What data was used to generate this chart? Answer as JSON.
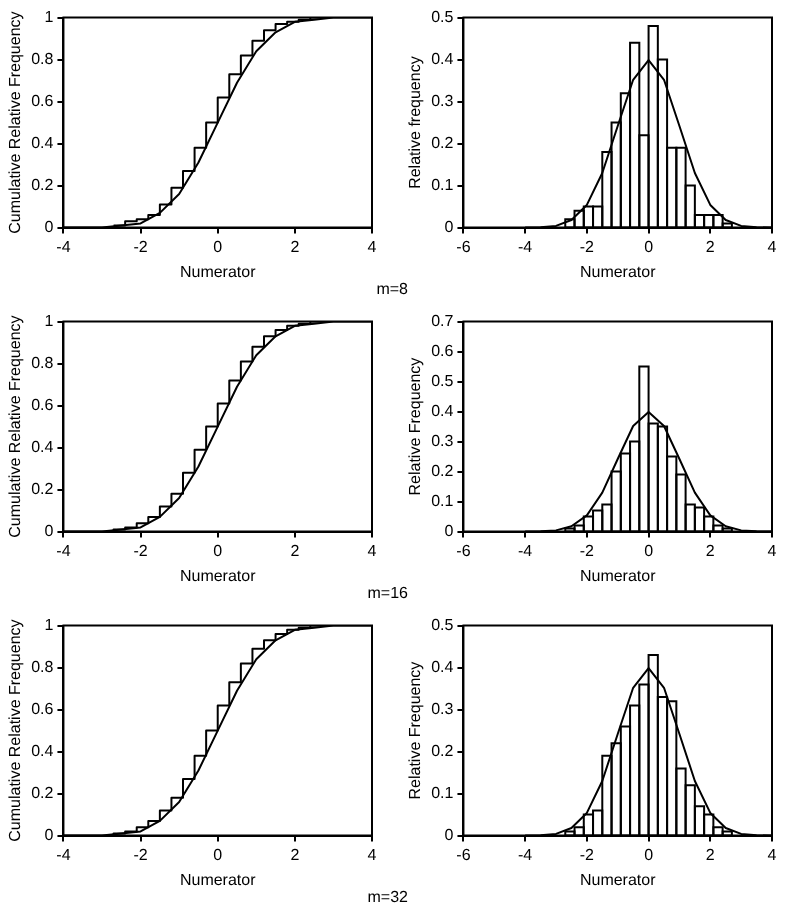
{
  "chart_data": [
    {
      "type": "step",
      "xlabel": "Numerator",
      "ylabel": "Cumulative Relative Frequency",
      "annotations": [
        "m=8"
      ],
      "xlim": [
        -4,
        4
      ],
      "xticks": [
        -4,
        -2,
        0,
        2,
        4
      ],
      "ylim": [
        0,
        1
      ],
      "yticks": [
        0,
        0.2,
        0.4,
        0.6,
        0.8,
        1
      ],
      "grid": false,
      "legend": false,
      "series": [
        {
          "color": "#000000",
          "x": [
            -2.7,
            -2.4,
            -2.1,
            -1.8,
            -1.5,
            -1.2,
            -0.9,
            -0.6,
            -0.3,
            0,
            0.3,
            0.6,
            0.9,
            1.2,
            1.5,
            1.8,
            2.1,
            2.4,
            2.7
          ],
          "values": [
            0.01,
            0.01,
            0.03,
            0.04,
            0.06,
            0.11,
            0.19,
            0.27,
            0.38,
            0.5,
            0.62,
            0.73,
            0.82,
            0.89,
            0.94,
            0.97,
            0.98,
            0.99,
            1
          ]
        },
        {
          "type": "line",
          "color": "#000000",
          "x": [
            -4,
            -3.5,
            -3,
            -2.5,
            -2,
            -1.5,
            -1,
            -0.5,
            0,
            0.5,
            1,
            1.5,
            2,
            2.5,
            3,
            3.5,
            4
          ],
          "values": [
            0,
            0,
            0,
            0.01,
            0.02,
            0.07,
            0.16,
            0.31,
            0.5,
            0.69,
            0.84,
            0.93,
            0.98,
            0.99,
            1,
            1,
            1
          ]
        }
      ]
    },
    {
      "type": "histogram",
      "xlabel": "Numerator",
      "ylabel": "Relative frequency",
      "xlim": [
        -6,
        4
      ],
      "xticks": [
        -6,
        -4,
        -2,
        0,
        2,
        4
      ],
      "ylim": [
        0,
        0.5
      ],
      "yticks": [
        0,
        0.1,
        0.2,
        0.3,
        0.4,
        0.5
      ],
      "grid": false,
      "legend": false,
      "series": [
        {
          "color": "#000000",
          "bins": [
            -2.7,
            -2.4,
            -2.1,
            -1.8,
            -1.5,
            -1.2,
            -0.9,
            -0.6,
            -0.3,
            0,
            0.3,
            0.6,
            0.9,
            1.2,
            1.5,
            1.8,
            2.1,
            2.4,
            2.7
          ],
          "values": [
            0.02,
            0.04,
            0.05,
            0.05,
            0.18,
            0.25,
            0.32,
            0.44,
            0.22,
            0.48,
            0.4,
            0.19,
            0.19,
            0.1,
            0.03,
            0.03,
            0.03,
            0.01
          ]
        },
        {
          "type": "line",
          "color": "#000000",
          "x": [
            -4,
            -3.5,
            -3,
            -2.5,
            -2,
            -1.5,
            -1,
            -0.5,
            0,
            0.5,
            1,
            1.5,
            2,
            2.5,
            3,
            3.5,
            4
          ],
          "values": [
            0,
            0.001,
            0.004,
            0.018,
            0.054,
            0.13,
            0.242,
            0.352,
            0.399,
            0.352,
            0.242,
            0.13,
            0.054,
            0.018,
            0.004,
            0.001,
            0
          ]
        }
      ]
    },
    {
      "type": "step",
      "xlabel": "Numerator",
      "ylabel": "Cumulative Relative Frequency",
      "annotations": [
        "m=16"
      ],
      "xlim": [
        -4,
        4
      ],
      "xticks": [
        -4,
        -2,
        0,
        2,
        4
      ],
      "ylim": [
        0,
        1
      ],
      "yticks": [
        0,
        0.2,
        0.4,
        0.6,
        0.8,
        1
      ],
      "grid": false,
      "legend": false,
      "series": [
        {
          "color": "#000000",
          "x": [
            -2.7,
            -2.4,
            -2.1,
            -1.8,
            -1.5,
            -1.2,
            -0.9,
            -0.6,
            -0.3,
            0,
            0.3,
            0.6,
            0.9,
            1.2,
            1.5,
            1.8,
            2.1,
            2.4,
            2.7
          ],
          "values": [
            0,
            0.01,
            0.02,
            0.04,
            0.07,
            0.12,
            0.18,
            0.28,
            0.39,
            0.5,
            0.61,
            0.72,
            0.81,
            0.88,
            0.93,
            0.96,
            0.98,
            0.99,
            1
          ]
        },
        {
          "type": "line",
          "color": "#000000",
          "x": [
            -4,
            -3.5,
            -3,
            -2.5,
            -2,
            -1.5,
            -1,
            -0.5,
            0,
            0.5,
            1,
            1.5,
            2,
            2.5,
            3,
            3.5,
            4
          ],
          "values": [
            0,
            0,
            0,
            0.01,
            0.02,
            0.07,
            0.16,
            0.31,
            0.5,
            0.69,
            0.84,
            0.93,
            0.98,
            0.99,
            1,
            1,
            1
          ]
        }
      ]
    },
    {
      "type": "histogram",
      "xlabel": "Numerator",
      "ylabel": "Relative Frequency",
      "xlim": [
        -6,
        4
      ],
      "xticks": [
        -6,
        -4,
        -2,
        0,
        2,
        4
      ],
      "ylim": [
        0,
        0.7
      ],
      "yticks": [
        0,
        0.1,
        0.2,
        0.3,
        0.4,
        0.5,
        0.6,
        0.7
      ],
      "grid": false,
      "legend": false,
      "series": [
        {
          "color": "#000000",
          "bins": [
            -2.7,
            -2.4,
            -2.1,
            -1.8,
            -1.5,
            -1.2,
            -0.9,
            -0.6,
            -0.3,
            0,
            0.3,
            0.6,
            0.9,
            1.2,
            1.5,
            1.8,
            2.1,
            2.4,
            2.7
          ],
          "values": [
            0.01,
            0.02,
            0.05,
            0.07,
            0.09,
            0.2,
            0.26,
            0.3,
            0.55,
            0.36,
            0.35,
            0.25,
            0.19,
            0.09,
            0.08,
            0.05,
            0.02,
            0.01
          ]
        },
        {
          "type": "line",
          "color": "#000000",
          "x": [
            -4,
            -3.5,
            -3,
            -2.5,
            -2,
            -1.5,
            -1,
            -0.5,
            0,
            0.5,
            1,
            1.5,
            2,
            2.5,
            3,
            3.5,
            4
          ],
          "values": [
            0,
            0.001,
            0.004,
            0.018,
            0.054,
            0.13,
            0.242,
            0.352,
            0.399,
            0.352,
            0.242,
            0.13,
            0.054,
            0.018,
            0.004,
            0.001,
            0
          ]
        }
      ]
    },
    {
      "type": "step",
      "xlabel": "Numerator",
      "ylabel": "Cumulative Relative Frequency",
      "annotations": [
        "m=32"
      ],
      "xlim": [
        -4,
        4
      ],
      "xticks": [
        -4,
        -2,
        0,
        2,
        4
      ],
      "ylim": [
        0,
        1
      ],
      "yticks": [
        0,
        0.2,
        0.4,
        0.6,
        0.8,
        1
      ],
      "grid": false,
      "legend": false,
      "series": [
        {
          "color": "#000000",
          "x": [
            -2.7,
            -2.4,
            -2.1,
            -1.8,
            -1.5,
            -1.2,
            -0.9,
            -0.6,
            -0.3,
            0,
            0.3,
            0.6,
            0.9,
            1.2,
            1.5,
            1.8,
            2.1,
            2.4,
            2.7
          ],
          "values": [
            0,
            0.01,
            0.02,
            0.04,
            0.07,
            0.12,
            0.18,
            0.27,
            0.38,
            0.5,
            0.62,
            0.73,
            0.82,
            0.89,
            0.93,
            0.96,
            0.98,
            0.99,
            1
          ]
        },
        {
          "type": "line",
          "color": "#000000",
          "x": [
            -4,
            -3.5,
            -3,
            -2.5,
            -2,
            -1.5,
            -1,
            -0.5,
            0,
            0.5,
            1,
            1.5,
            2,
            2.5,
            3,
            3.5,
            4
          ],
          "values": [
            0,
            0,
            0,
            0.01,
            0.02,
            0.07,
            0.16,
            0.31,
            0.5,
            0.69,
            0.84,
            0.93,
            0.98,
            0.99,
            1,
            1,
            1
          ]
        }
      ]
    },
    {
      "type": "histogram",
      "xlabel": "Numerator",
      "ylabel": "Relative Frequency",
      "xlim": [
        -6,
        4
      ],
      "xticks": [
        -6,
        -4,
        -2,
        0,
        2,
        4
      ],
      "ylim": [
        0,
        0.5
      ],
      "yticks": [
        0,
        0.1,
        0.2,
        0.3,
        0.4,
        0.5
      ],
      "grid": false,
      "legend": false,
      "series": [
        {
          "color": "#000000",
          "bins": [
            -2.7,
            -2.4,
            -2.1,
            -1.8,
            -1.5,
            -1.2,
            -0.9,
            -0.6,
            -0.3,
            0,
            0.3,
            0.6,
            0.9,
            1.2,
            1.5,
            1.8,
            2.1,
            2.4,
            2.7
          ],
          "values": [
            0.01,
            0.02,
            0.05,
            0.06,
            0.19,
            0.22,
            0.26,
            0.31,
            0.36,
            0.43,
            0.33,
            0.32,
            0.16,
            0.12,
            0.07,
            0.05,
            0.02,
            0.01
          ]
        },
        {
          "type": "line",
          "color": "#000000",
          "x": [
            -4,
            -3.5,
            -3,
            -2.5,
            -2,
            -1.5,
            -1,
            -0.5,
            0,
            0.5,
            1,
            1.5,
            2,
            2.5,
            3,
            3.5,
            4
          ],
          "values": [
            0,
            0.001,
            0.004,
            0.018,
            0.054,
            0.13,
            0.242,
            0.352,
            0.399,
            0.352,
            0.242,
            0.13,
            0.054,
            0.018,
            0.004,
            0.001,
            0
          ]
        }
      ]
    }
  ]
}
